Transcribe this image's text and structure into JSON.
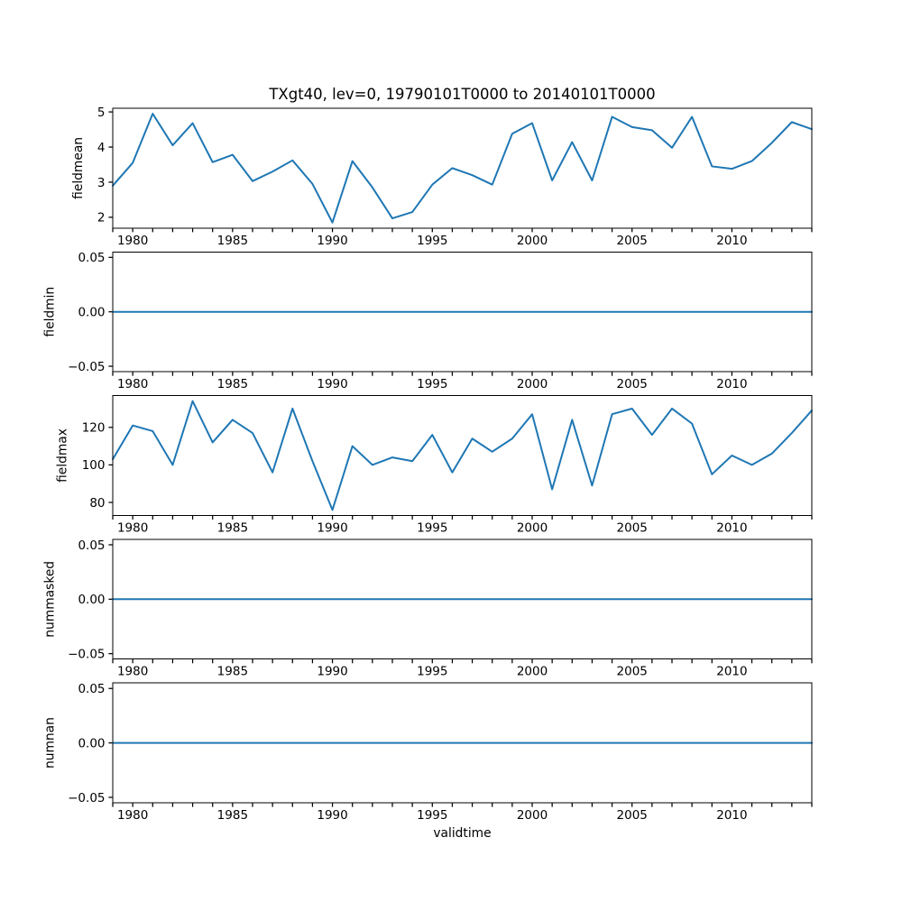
{
  "figure": {
    "title": "TXgt40, lev=0, 19790101T0000 to 20140101T0000",
    "x_axis_label": "validtime",
    "line_color": "#1f77b4",
    "spine_color": "#000000",
    "text_color": "#000000",
    "background_color": "#ffffff"
  },
  "chart_data": {
    "type": "line",
    "title": "TXgt40, lev=0, 19790101T0000 to 20140101T0000",
    "xlabel": "validtime",
    "grid": false,
    "legend": "none",
    "x_range": [
      1979,
      2014
    ],
    "x_major_ticks": [
      1980,
      1985,
      1990,
      1995,
      2000,
      2005,
      2010
    ],
    "x_minor_tick_step_years": 1,
    "x_years": [
      1979,
      1980,
      1981,
      1982,
      1983,
      1984,
      1985,
      1986,
      1987,
      1988,
      1989,
      1990,
      1991,
      1992,
      1993,
      1994,
      1995,
      1996,
      1997,
      1998,
      1999,
      2000,
      2001,
      2002,
      2003,
      2004,
      2005,
      2006,
      2007,
      2008,
      2009,
      2010,
      2011,
      2012,
      2013,
      2014
    ],
    "subplots": [
      {
        "ylabel": "fieldmean",
        "ylim": [
          1.695,
          5.105
        ],
        "ytick_values": [
          5,
          4,
          3,
          2
        ],
        "ytick_labels": [
          "5",
          "4",
          "3",
          "2"
        ],
        "values": [
          2.9,
          3.55,
          4.95,
          4.05,
          4.68,
          3.57,
          3.78,
          3.03,
          3.3,
          3.62,
          2.95,
          1.85,
          3.6,
          2.85,
          1.97,
          2.15,
          2.93,
          3.4,
          3.2,
          2.93,
          4.38,
          4.68,
          3.05,
          4.14,
          3.05,
          4.86,
          4.57,
          4.48,
          3.98,
          4.86,
          3.45,
          3.38,
          3.6,
          4.12,
          4.71,
          4.51
        ]
      },
      {
        "ylabel": "fieldmin",
        "ylim": [
          -0.055,
          0.055
        ],
        "ytick_values": [
          0.05,
          0.0,
          -0.05
        ],
        "ytick_labels": [
          "0.05",
          "0.00",
          "−0.05"
        ],
        "values": [
          0,
          0,
          0,
          0,
          0,
          0,
          0,
          0,
          0,
          0,
          0,
          0,
          0,
          0,
          0,
          0,
          0,
          0,
          0,
          0,
          0,
          0,
          0,
          0,
          0,
          0,
          0,
          0,
          0,
          0,
          0,
          0,
          0,
          0,
          0,
          0
        ]
      },
      {
        "ylabel": "fieldmax",
        "ylim": [
          73.1,
          136.9
        ],
        "ytick_values": [
          120,
          100,
          80
        ],
        "ytick_labels": [
          "120",
          "100",
          "80"
        ],
        "values": [
          103,
          121,
          118,
          100,
          134,
          112,
          124,
          117,
          96,
          130,
          102,
          76,
          110,
          100,
          104,
          102,
          116,
          96,
          114,
          107,
          114,
          127,
          87,
          124,
          89,
          127,
          130,
          116,
          130,
          122,
          95,
          105,
          100,
          106,
          117,
          129
        ]
      },
      {
        "ylabel": "nummasked",
        "ylim": [
          -0.055,
          0.055
        ],
        "ytick_values": [
          0.05,
          0.0,
          -0.05
        ],
        "ytick_labels": [
          "0.05",
          "0.00",
          "−0.05"
        ],
        "values": [
          0,
          0,
          0,
          0,
          0,
          0,
          0,
          0,
          0,
          0,
          0,
          0,
          0,
          0,
          0,
          0,
          0,
          0,
          0,
          0,
          0,
          0,
          0,
          0,
          0,
          0,
          0,
          0,
          0,
          0,
          0,
          0,
          0,
          0,
          0,
          0
        ]
      },
      {
        "ylabel": "numnan",
        "ylim": [
          -0.055,
          0.055
        ],
        "ytick_values": [
          0.05,
          0.0,
          -0.05
        ],
        "ytick_labels": [
          "0.05",
          "0.00",
          "−0.05"
        ],
        "values": [
          0,
          0,
          0,
          0,
          0,
          0,
          0,
          0,
          0,
          0,
          0,
          0,
          0,
          0,
          0,
          0,
          0,
          0,
          0,
          0,
          0,
          0,
          0,
          0,
          0,
          0,
          0,
          0,
          0,
          0,
          0,
          0,
          0,
          0,
          0,
          0
        ]
      }
    ]
  }
}
